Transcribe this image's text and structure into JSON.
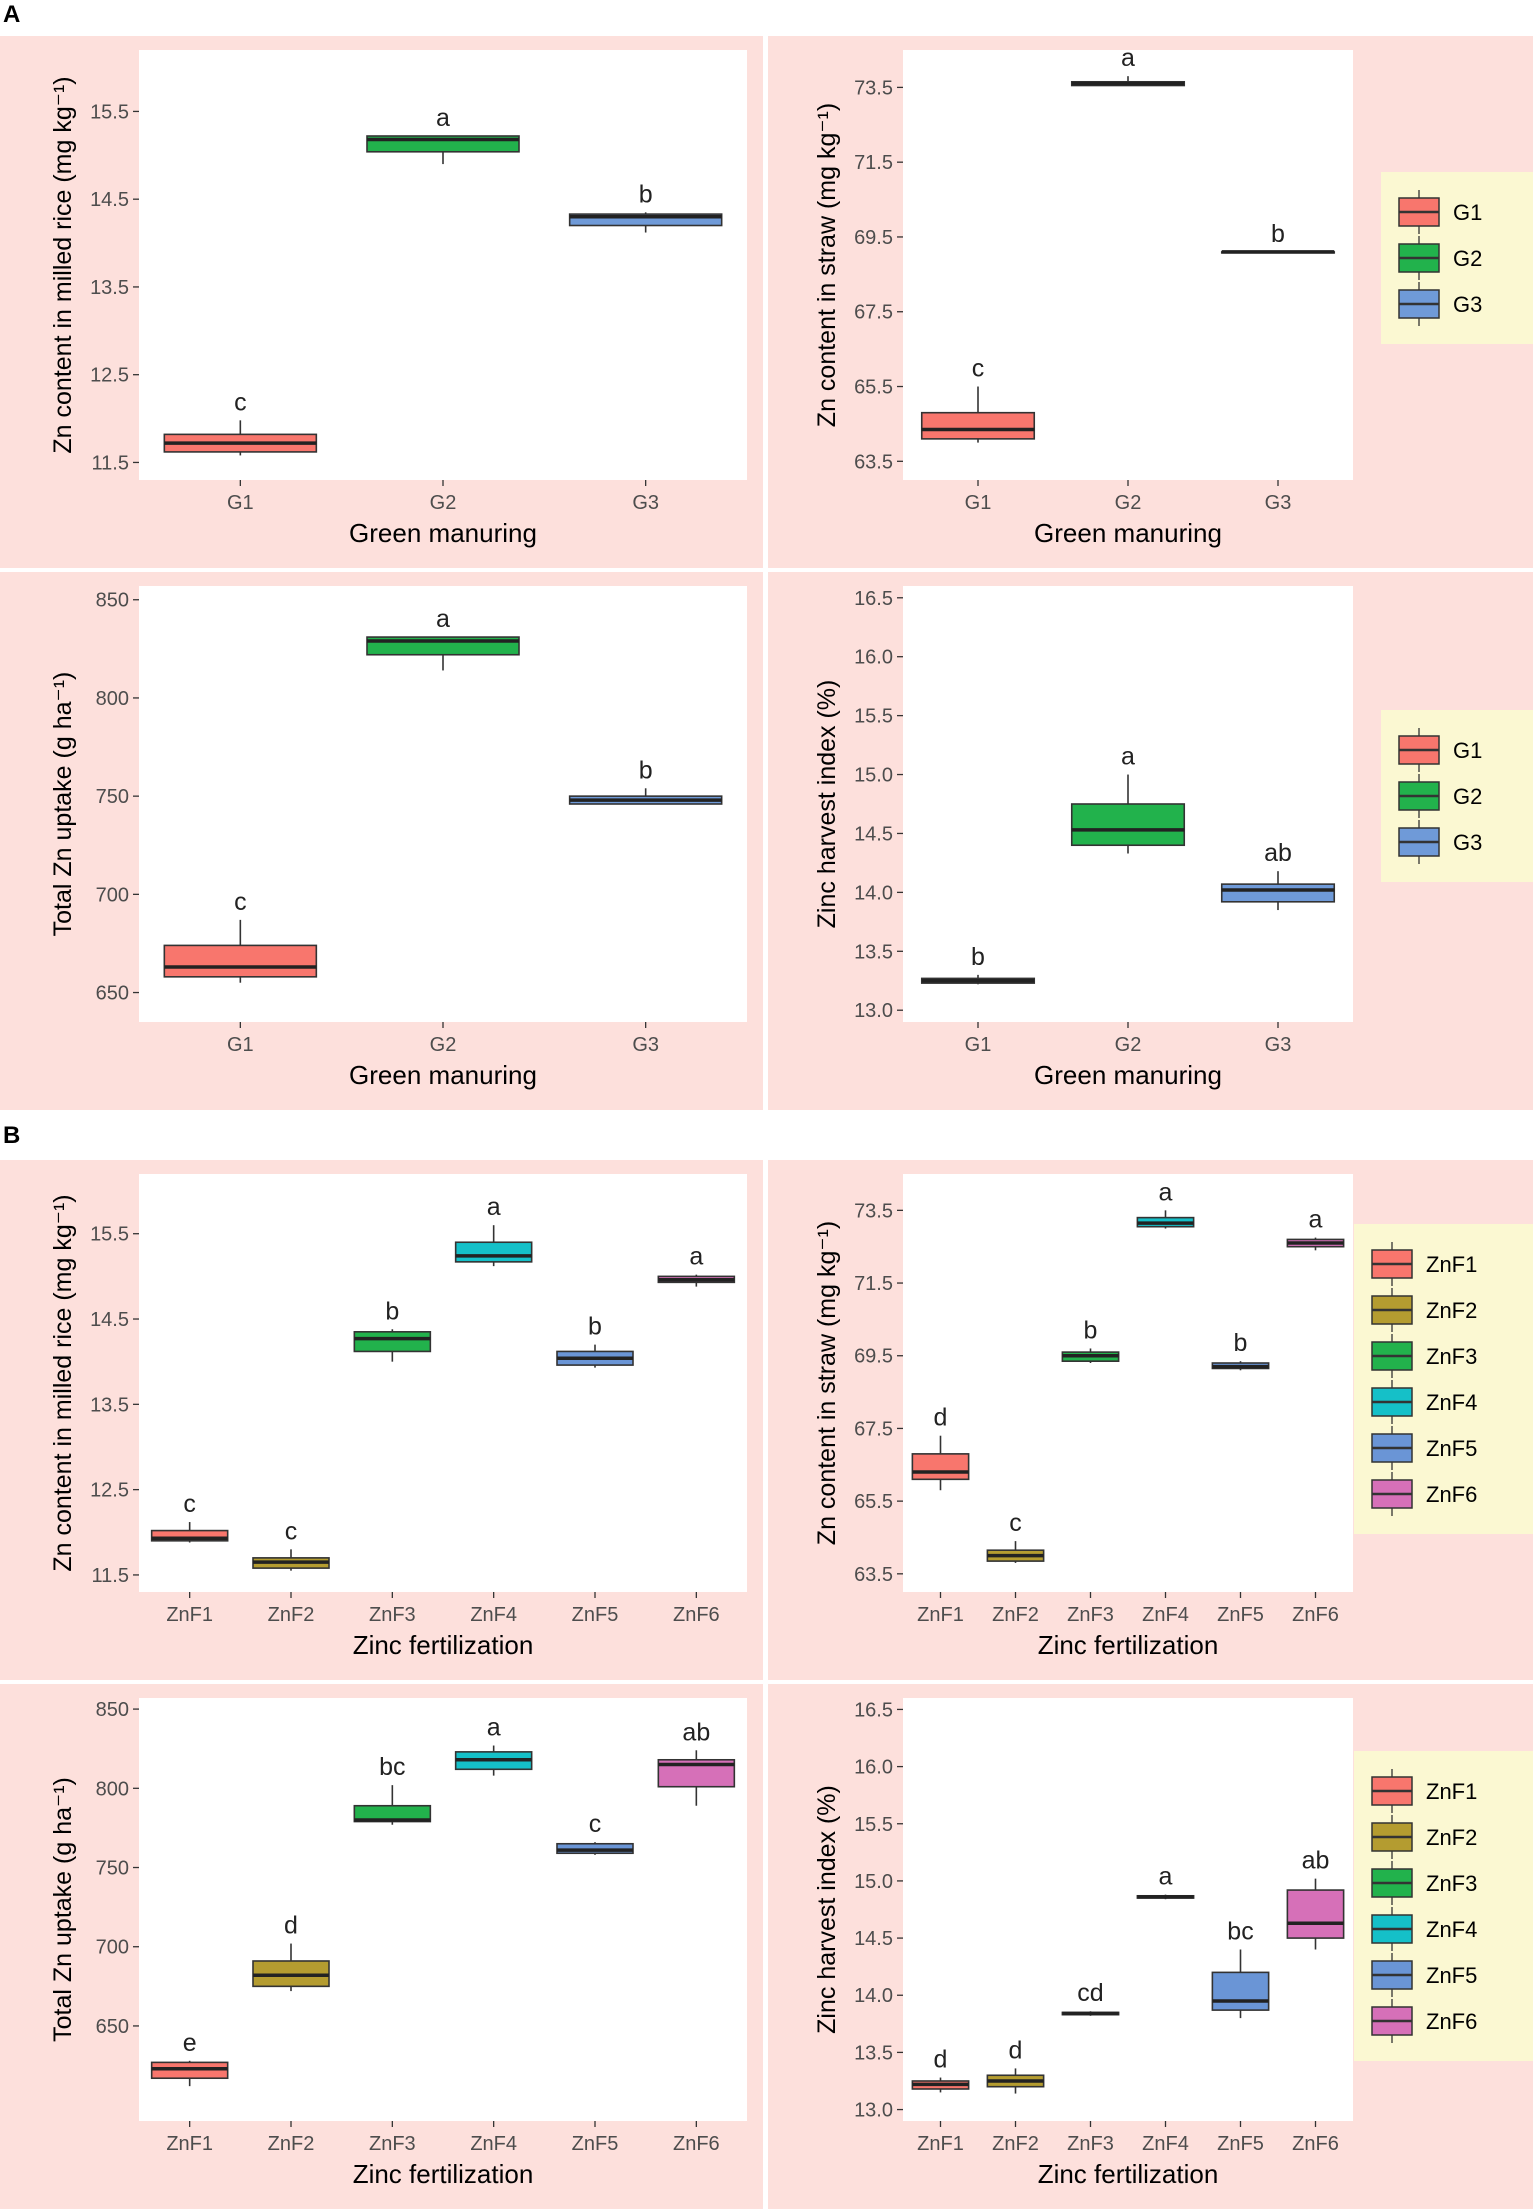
{
  "section_labels": [
    "A",
    "B"
  ],
  "colors": {
    "panel_bg": "#fde0dc",
    "plot_bg": "#ffffff",
    "legend_bg": "#fbf8d2",
    "axis_text": "#4d4d4d",
    "G1": "#f8766d",
    "G2": "#22b24c",
    "G3": "#6f9ad8",
    "ZnF1": "#f8766d",
    "ZnF2": "#b49c30",
    "ZnF3": "#22b24c",
    "ZnF4": "#15c0c8",
    "ZnF5": "#6a95d6",
    "ZnF6": "#d670b8"
  },
  "legends": {
    "green_manuring": [
      "G1",
      "G2",
      "G3"
    ],
    "zinc_fertilization": [
      "ZnF1",
      "ZnF2",
      "ZnF3",
      "ZnF4",
      "ZnF5",
      "ZnF6"
    ]
  },
  "chart_data": [
    {
      "id": "A-milled",
      "type": "box",
      "section": "A",
      "ylabel": "Zn content in milled rice (mg kg⁻¹)",
      "xlabel": "Green manuring",
      "ylim": [
        11.3,
        16.2
      ],
      "yticks": [
        "11.5",
        "12.5",
        "13.5",
        "14.5",
        "15.5"
      ],
      "categories": [
        "G1",
        "G2",
        "G3"
      ],
      "boxes": [
        {
          "cat": "G1",
          "min": 11.58,
          "q1": 11.62,
          "median": 11.72,
          "q3": 11.82,
          "max": 11.98,
          "letter": "c"
        },
        {
          "cat": "G2",
          "min": 14.9,
          "q1": 15.04,
          "median": 15.18,
          "q3": 15.22,
          "max": 15.22,
          "letter": "a"
        },
        {
          "cat": "G3",
          "min": 14.12,
          "q1": 14.2,
          "median": 14.3,
          "q3": 14.33,
          "max": 14.35,
          "letter": "b"
        }
      ]
    },
    {
      "id": "A-straw",
      "type": "box",
      "section": "A",
      "ylabel": "Zn content in straw (mg kg⁻¹)",
      "xlabel": "Green manuring",
      "ylim": [
        63.0,
        74.5
      ],
      "yticks": [
        "63.5",
        "65.5",
        "67.5",
        "69.5",
        "71.5",
        "73.5"
      ],
      "categories": [
        "G1",
        "G2",
        "G3"
      ],
      "boxes": [
        {
          "cat": "G1",
          "min": 64.0,
          "q1": 64.1,
          "median": 64.35,
          "q3": 64.8,
          "max": 65.5,
          "letter": "c"
        },
        {
          "cat": "G2",
          "min": 73.55,
          "q1": 73.55,
          "median": 73.6,
          "q3": 73.65,
          "max": 73.8,
          "letter": "a"
        },
        {
          "cat": "G3",
          "min": 69.1,
          "q1": 69.1,
          "median": 69.1,
          "q3": 69.1,
          "max": 69.1,
          "letter": "b"
        }
      ]
    },
    {
      "id": "A-uptake",
      "type": "box",
      "section": "A",
      "ylabel": "Total Zn uptake (g ha⁻¹)",
      "xlabel": "Green manuring",
      "ylim": [
        635,
        857
      ],
      "yticks": [
        "650",
        "700",
        "750",
        "800",
        "850"
      ],
      "categories": [
        "G1",
        "G2",
        "G3"
      ],
      "boxes": [
        {
          "cat": "G1",
          "min": 655,
          "q1": 658,
          "median": 663,
          "q3": 674,
          "max": 687,
          "letter": "c"
        },
        {
          "cat": "G2",
          "min": 814,
          "q1": 822,
          "median": 829,
          "q3": 831,
          "max": 831,
          "letter": "a"
        },
        {
          "cat": "G3",
          "min": 746,
          "q1": 746,
          "median": 748,
          "q3": 750,
          "max": 754,
          "letter": "b"
        }
      ]
    },
    {
      "id": "A-zhi",
      "type": "box",
      "section": "A",
      "ylabel": "Zinc harvest index (%)",
      "xlabel": "Green manuring",
      "ylim": [
        12.9,
        16.6
      ],
      "yticks": [
        "13.0",
        "13.5",
        "14.0",
        "14.5",
        "15.0",
        "15.5",
        "16.0",
        "16.5"
      ],
      "categories": [
        "G1",
        "G2",
        "G3"
      ],
      "boxes": [
        {
          "cat": "G1",
          "min": 13.22,
          "q1": 13.23,
          "median": 13.25,
          "q3": 13.27,
          "max": 13.3,
          "letter": "b"
        },
        {
          "cat": "G2",
          "min": 14.33,
          "q1": 14.4,
          "median": 14.53,
          "q3": 14.75,
          "max": 15.0,
          "letter": "a"
        },
        {
          "cat": "G3",
          "min": 13.85,
          "q1": 13.92,
          "median": 14.02,
          "q3": 14.07,
          "max": 14.18,
          "letter": "ab"
        }
      ]
    },
    {
      "id": "B-milled",
      "type": "box",
      "section": "B",
      "ylabel": "Zn content in milled rice (mg kg⁻¹)",
      "xlabel": "Zinc fertilization",
      "ylim": [
        11.3,
        16.2
      ],
      "yticks": [
        "11.5",
        "12.5",
        "13.5",
        "14.5",
        "15.5"
      ],
      "categories": [
        "ZnF1",
        "ZnF2",
        "ZnF3",
        "ZnF4",
        "ZnF5",
        "ZnF6"
      ],
      "boxes": [
        {
          "cat": "ZnF1",
          "min": 11.88,
          "q1": 11.9,
          "median": 11.93,
          "q3": 12.02,
          "max": 12.12,
          "letter": "c"
        },
        {
          "cat": "ZnF2",
          "min": 11.55,
          "q1": 11.58,
          "median": 11.65,
          "q3": 11.7,
          "max": 11.8,
          "letter": "c"
        },
        {
          "cat": "ZnF3",
          "min": 14.0,
          "q1": 14.12,
          "median": 14.27,
          "q3": 14.35,
          "max": 14.38,
          "letter": "b"
        },
        {
          "cat": "ZnF4",
          "min": 15.12,
          "q1": 15.17,
          "median": 15.24,
          "q3": 15.4,
          "max": 15.6,
          "letter": "a"
        },
        {
          "cat": "ZnF5",
          "min": 13.93,
          "q1": 13.96,
          "median": 14.04,
          "q3": 14.12,
          "max": 14.2,
          "letter": "b"
        },
        {
          "cat": "ZnF6",
          "min": 14.88,
          "q1": 14.93,
          "median": 14.96,
          "q3": 15.0,
          "max": 15.02,
          "letter": "a"
        }
      ]
    },
    {
      "id": "B-straw",
      "type": "box",
      "section": "B",
      "ylabel": "Zn content in straw (mg kg⁻¹)",
      "xlabel": "Zinc fertilization",
      "ylim": [
        63.0,
        74.5
      ],
      "yticks": [
        "63.5",
        "65.5",
        "67.5",
        "69.5",
        "71.5",
        "73.5"
      ],
      "categories": [
        "ZnF1",
        "ZnF2",
        "ZnF3",
        "ZnF4",
        "ZnF5",
        "ZnF6"
      ],
      "boxes": [
        {
          "cat": "ZnF1",
          "min": 65.8,
          "q1": 66.1,
          "median": 66.3,
          "q3": 66.8,
          "max": 67.3,
          "letter": "d"
        },
        {
          "cat": "ZnF2",
          "min": 63.8,
          "q1": 63.85,
          "median": 64.0,
          "q3": 64.15,
          "max": 64.4,
          "letter": "c"
        },
        {
          "cat": "ZnF3",
          "min": 69.3,
          "q1": 69.35,
          "median": 69.5,
          "q3": 69.6,
          "max": 69.7,
          "letter": "b"
        },
        {
          "cat": "ZnF4",
          "min": 73.0,
          "q1": 73.05,
          "median": 73.15,
          "q3": 73.3,
          "max": 73.5,
          "letter": "a"
        },
        {
          "cat": "ZnF5",
          "min": 69.1,
          "q1": 69.15,
          "median": 69.2,
          "q3": 69.3,
          "max": 69.35,
          "letter": "b"
        },
        {
          "cat": "ZnF6",
          "min": 72.4,
          "q1": 72.5,
          "median": 72.6,
          "q3": 72.7,
          "max": 72.75,
          "letter": "a"
        }
      ]
    },
    {
      "id": "B-uptake",
      "type": "box",
      "section": "B",
      "ylabel": "Total Zn uptake (g ha⁻¹)",
      "xlabel": "Zinc fertilization",
      "ylim": [
        590,
        857
      ],
      "yticks": [
        "650",
        "700",
        "750",
        "800",
        "850"
      ],
      "categories": [
        "ZnF1",
        "ZnF2",
        "ZnF3",
        "ZnF4",
        "ZnF5",
        "ZnF6"
      ],
      "boxes": [
        {
          "cat": "ZnF1",
          "min": 612,
          "q1": 617,
          "median": 623,
          "q3": 627,
          "max": 628,
          "letter": "e"
        },
        {
          "cat": "ZnF2",
          "min": 672,
          "q1": 675,
          "median": 682,
          "q3": 691,
          "max": 702,
          "letter": "d"
        },
        {
          "cat": "ZnF3",
          "min": 777,
          "q1": 779,
          "median": 780,
          "q3": 789,
          "max": 802,
          "letter": "bc"
        },
        {
          "cat": "ZnF4",
          "min": 808,
          "q1": 812,
          "median": 818,
          "q3": 823,
          "max": 827,
          "letter": "a"
        },
        {
          "cat": "ZnF5",
          "min": 758,
          "q1": 759,
          "median": 761,
          "q3": 765,
          "max": 766,
          "letter": "c"
        },
        {
          "cat": "ZnF6",
          "min": 789,
          "q1": 801,
          "median": 815,
          "q3": 818,
          "max": 824,
          "letter": "ab"
        }
      ]
    },
    {
      "id": "B-zhi",
      "type": "box",
      "section": "B",
      "ylabel": "Zinc harvest index (%)",
      "xlabel": "Zinc fertilization",
      "ylim": [
        12.9,
        16.6
      ],
      "yticks": [
        "13.0",
        "13.5",
        "14.0",
        "14.5",
        "15.0",
        "15.5",
        "16.0",
        "16.5"
      ],
      "categories": [
        "ZnF1",
        "ZnF2",
        "ZnF3",
        "ZnF4",
        "ZnF5",
        "ZnF6"
      ],
      "boxes": [
        {
          "cat": "ZnF1",
          "min": 13.15,
          "q1": 13.18,
          "median": 13.22,
          "q3": 13.25,
          "max": 13.28,
          "letter": "d"
        },
        {
          "cat": "ZnF2",
          "min": 13.14,
          "q1": 13.2,
          "median": 13.25,
          "q3": 13.3,
          "max": 13.36,
          "letter": "d"
        },
        {
          "cat": "ZnF3",
          "min": 13.82,
          "q1": 13.83,
          "median": 13.84,
          "q3": 13.85,
          "max": 13.86,
          "letter": "cd"
        },
        {
          "cat": "ZnF4",
          "min": 14.84,
          "q1": 14.85,
          "median": 14.86,
          "q3": 14.87,
          "max": 14.88,
          "letter": "a"
        },
        {
          "cat": "ZnF5",
          "min": 13.8,
          "q1": 13.87,
          "median": 13.95,
          "q3": 14.2,
          "max": 14.4,
          "letter": "bc"
        },
        {
          "cat": "ZnF6",
          "min": 14.4,
          "q1": 14.5,
          "median": 14.63,
          "q3": 14.92,
          "max": 15.02,
          "letter": "ab"
        }
      ]
    }
  ]
}
